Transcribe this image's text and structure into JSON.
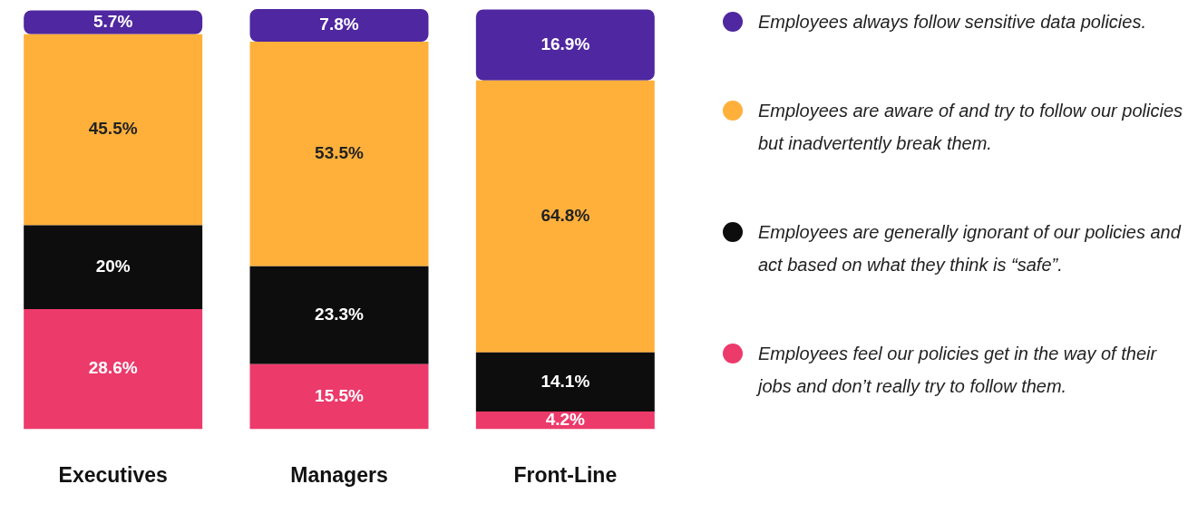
{
  "chart_data": {
    "type": "bar",
    "stacked": true,
    "categories": [
      "Executives",
      "Managers",
      "Front-Line"
    ],
    "legend": "right",
    "grid": false,
    "series": [
      {
        "name": "Employees feel our policies get in the way of their jobs and don’t really try to follow them.",
        "color": "#ec3a6b",
        "values": [
          28.6,
          15.5,
          4.2
        ],
        "value_labels": [
          "28.6%",
          "15.5%",
          "4.2%"
        ]
      },
      {
        "name": "Employees are generally ignorant of our policies and act based on what they think is “safe”.",
        "color": "#0d0d0d",
        "values": [
          20,
          23.3,
          14.1
        ],
        "value_labels": [
          "20%",
          "23.3%",
          "14.1%"
        ]
      },
      {
        "name": "Employees are aware of and try to follow our policies but inadvertently break them.",
        "color": "#ffb03b",
        "values": [
          45.5,
          53.5,
          64.8
        ],
        "value_labels": [
          "45.5%",
          "53.5%",
          "64.8%"
        ]
      },
      {
        "name": "Employees always follow sensitive data policies.",
        "color": "#4f27a0",
        "values": [
          5.7,
          7.8,
          16.9
        ],
        "value_labels": [
          "5.7%",
          "7.8%",
          "16.9%"
        ]
      }
    ]
  }
}
